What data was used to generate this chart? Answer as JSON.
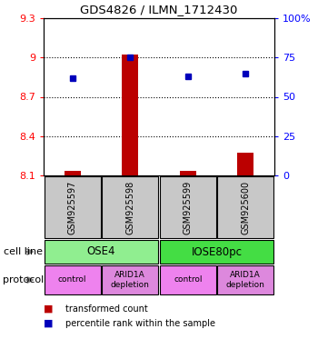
{
  "title": "GDS4826 / ILMN_1712430",
  "samples": [
    "GSM925597",
    "GSM925598",
    "GSM925599",
    "GSM925600"
  ],
  "bar_values": [
    8.135,
    9.02,
    8.135,
    8.27
  ],
  "bar_base": 8.1,
  "dot_values": [
    62,
    75,
    63,
    65
  ],
  "ylim_left": [
    8.1,
    9.3
  ],
  "ylim_right": [
    0,
    100
  ],
  "yticks_left": [
    8.1,
    8.4,
    8.7,
    9.0,
    9.3
  ],
  "ytick_labels_left": [
    "8.1",
    "8.4",
    "8.7",
    "9",
    "9.3"
  ],
  "ytick_labels_right": [
    "0",
    "25",
    "50",
    "75",
    "100%"
  ],
  "hlines": [
    9.0,
    8.7,
    8.4
  ],
  "cell_lines": [
    {
      "label": "OSE4",
      "cols": [
        0,
        1
      ],
      "color": "#90EE90"
    },
    {
      "label": "IOSE80pc",
      "cols": [
        2,
        3
      ],
      "color": "#44DD44"
    }
  ],
  "protocols": [
    {
      "label": "control",
      "col": 0,
      "color": "#EE82EE"
    },
    {
      "label": "ARID1A\ndepletion",
      "col": 1,
      "color": "#DD88DD"
    },
    {
      "label": "control",
      "col": 2,
      "color": "#EE82EE"
    },
    {
      "label": "ARID1A\ndepletion",
      "col": 3,
      "color": "#DD88DD"
    }
  ],
  "bar_color": "#BB0000",
  "dot_color": "#0000BB",
  "sample_box_color": "#C8C8C8",
  "legend_bar_label": "transformed count",
  "legend_dot_label": "percentile rank within the sample",
  "cell_line_label": "cell line",
  "protocol_label": "protocol",
  "figsize": [
    3.5,
    3.84
  ],
  "dpi": 100
}
